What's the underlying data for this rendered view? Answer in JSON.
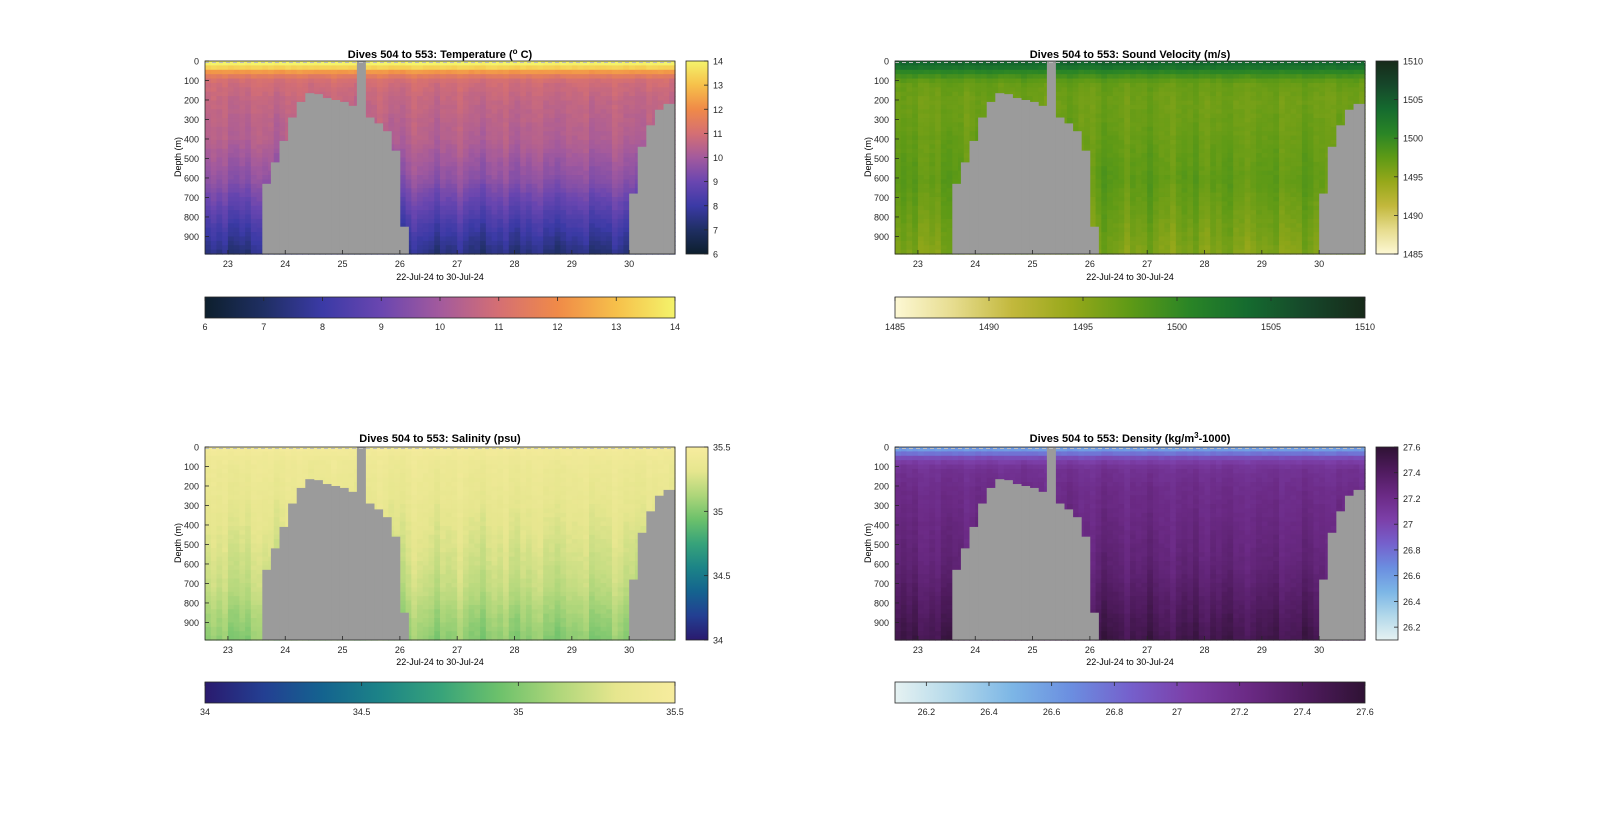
{
  "chart_data": [
    {
      "type": "heatmap",
      "variable": "temperature",
      "title": "Dives 504 to 553: Temperature (",
      "title_sup": "o",
      "title_suffix": " C)",
      "ylabel": "Depth (m)",
      "xlabel": "22-Jul-24 to 30-Jul-24",
      "xlim": [
        22.6,
        30.8
      ],
      "ylim": [
        990,
        0
      ],
      "x_ticks": [
        23,
        24,
        25,
        26,
        27,
        28,
        29,
        30
      ],
      "x_tick_labels": [
        "23",
        "24",
        "25",
        "26",
        "27",
        "28",
        "29",
        "30"
      ],
      "y_ticks": [
        0,
        100,
        200,
        300,
        400,
        500,
        600,
        700,
        800,
        900
      ],
      "y_tick_labels": [
        "0",
        "100",
        "200",
        "300",
        "400",
        "500",
        "600",
        "700",
        "800",
        "900"
      ],
      "colorbar": {
        "min": 6,
        "max": 14,
        "ticks": [
          6,
          7,
          8,
          9,
          10,
          11,
          12,
          13,
          14
        ],
        "tick_labels": [
          "6",
          "7",
          "8",
          "9",
          "10",
          "11",
          "12",
          "13",
          "14"
        ]
      },
      "colormap": [
        "#0d1f2d",
        "#1f2f63",
        "#3b3aa6",
        "#6a46b0",
        "#a35a9d",
        "#d56f73",
        "#f08a48",
        "#f6c04a",
        "#f4f36b"
      ],
      "profile": {
        "depths": [
          0,
          20,
          50,
          80,
          100,
          200,
          400,
          600,
          800,
          990
        ],
        "values": [
          14,
          13.5,
          12,
          11.1,
          10.9,
          10.6,
          10.3,
          9.6,
          8.4,
          7.3
        ]
      }
    },
    {
      "type": "heatmap",
      "variable": "sound_velocity",
      "title": "Dives 504 to 553: Sound Velocity (m/s)",
      "ylabel": "Depth (m)",
      "xlabel": "22-Jul-24 to 30-Jul-24",
      "xlim": [
        22.6,
        30.8
      ],
      "ylim": [
        990,
        0
      ],
      "x_ticks": [
        23,
        24,
        25,
        26,
        27,
        28,
        29,
        30
      ],
      "x_tick_labels": [
        "23",
        "24",
        "25",
        "26",
        "27",
        "28",
        "29",
        "30"
      ],
      "y_ticks": [
        0,
        100,
        200,
        300,
        400,
        500,
        600,
        700,
        800,
        900
      ],
      "y_tick_labels": [
        "0",
        "100",
        "200",
        "300",
        "400",
        "500",
        "600",
        "700",
        "800",
        "900"
      ],
      "colorbar": {
        "min": 1485,
        "max": 1510,
        "ticks": [
          1485,
          1490,
          1495,
          1500,
          1505,
          1510
        ],
        "tick_labels": [
          "1485",
          "1490",
          "1495",
          "1500",
          "1505",
          "1510"
        ]
      },
      "colormap": [
        "#fdf8d4",
        "#e6dc8e",
        "#c2b83c",
        "#96a81a",
        "#5e9a16",
        "#2a8526",
        "#156b2f",
        "#16472a",
        "#172a1a"
      ],
      "profile": {
        "depths": [
          0,
          20,
          50,
          100,
          200,
          400,
          600,
          800,
          990
        ],
        "values": [
          1504,
          1503,
          1500,
          1497,
          1496.5,
          1497,
          1497.5,
          1496.5,
          1495.5
        ]
      }
    },
    {
      "type": "heatmap",
      "variable": "salinity",
      "title": "Dives 504 to 553: Salinity (psu)",
      "ylabel": "Depth (m)",
      "xlabel": "22-Jul-24 to 30-Jul-24",
      "xlim": [
        22.6,
        30.8
      ],
      "ylim": [
        990,
        0
      ],
      "x_ticks": [
        23,
        24,
        25,
        26,
        27,
        28,
        29,
        30
      ],
      "x_tick_labels": [
        "23",
        "24",
        "25",
        "26",
        "27",
        "28",
        "29",
        "30"
      ],
      "y_ticks": [
        0,
        100,
        200,
        300,
        400,
        500,
        600,
        700,
        800,
        900
      ],
      "y_tick_labels": [
        "0",
        "100",
        "200",
        "300",
        "400",
        "500",
        "600",
        "700",
        "800",
        "900"
      ],
      "colorbar": {
        "min": 34,
        "max": 35.5,
        "ticks": [
          34,
          34.5,
          35,
          35.5
        ],
        "tick_labels": [
          "34",
          "34.5",
          "35",
          "35.5"
        ]
      },
      "colormap": [
        "#2a1a6e",
        "#233f92",
        "#14638f",
        "#1c8487",
        "#37a37a",
        "#6cc16b",
        "#aed67a",
        "#e6e68e",
        "#f7ec9e"
      ],
      "profile": {
        "depths": [
          0,
          50,
          100,
          300,
          500,
          700,
          850,
          990
        ],
        "values": [
          35.45,
          35.4,
          35.38,
          35.33,
          35.27,
          35.2,
          35.1,
          35.02
        ]
      }
    },
    {
      "type": "heatmap",
      "variable": "density",
      "title": "Dives 504 to 553: Density (kg/m",
      "title_sup": "3",
      "title_suffix": "-1000)",
      "ylabel": "Depth (m)",
      "xlabel": "22-Jul-24 to 30-Jul-24",
      "xlim": [
        22.6,
        30.8
      ],
      "ylim": [
        990,
        0
      ],
      "x_ticks": [
        23,
        24,
        25,
        26,
        27,
        28,
        29,
        30
      ],
      "x_tick_labels": [
        "23",
        "24",
        "25",
        "26",
        "27",
        "28",
        "29",
        "30"
      ],
      "y_ticks": [
        0,
        100,
        200,
        300,
        400,
        500,
        600,
        700,
        800,
        900
      ],
      "y_tick_labels": [
        "0",
        "100",
        "200",
        "300",
        "400",
        "500",
        "600",
        "700",
        "800",
        "900"
      ],
      "colorbar": {
        "min": 26.1,
        "max": 27.6,
        "ticks": [
          26.2,
          26.4,
          26.6,
          26.8,
          27,
          27.2,
          27.4,
          27.6
        ],
        "tick_labels": [
          "26.2",
          "26.4",
          "26.6",
          "26.8",
          "27",
          "27.2",
          "27.4",
          "27.6"
        ]
      },
      "colormap": [
        "#e6f2f2",
        "#b2d8ea",
        "#7cb6e6",
        "#6b8ee0",
        "#7560cc",
        "#7c3fa8",
        "#6b2a85",
        "#4f1b5e",
        "#2f1234"
      ],
      "profile": {
        "depths": [
          0,
          20,
          50,
          80,
          100,
          200,
          400,
          600,
          800,
          990
        ],
        "values": [
          26.6,
          26.75,
          27.0,
          27.1,
          27.15,
          27.2,
          27.25,
          27.3,
          27.4,
          27.5
        ]
      }
    }
  ],
  "bathymetry": {
    "x_edges": [
      22.6,
      23.6,
      23.75,
      23.9,
      24.05,
      24.2,
      24.35,
      24.5,
      24.65,
      24.8,
      24.95,
      25.1,
      25.25,
      25.4,
      25.55,
      25.7,
      25.85,
      26.0,
      26.15,
      30.0,
      30.15,
      30.3,
      30.45,
      30.6,
      30.8
    ],
    "depths": [
      null,
      630,
      520,
      410,
      290,
      210,
      165,
      170,
      190,
      200,
      210,
      230,
      0,
      290,
      320,
      360,
      460,
      850,
      null,
      680,
      440,
      330,
      250,
      220
    ]
  },
  "colors": {
    "land": "#9b9b9b",
    "axis": "#262626",
    "background": "#ffffff"
  }
}
